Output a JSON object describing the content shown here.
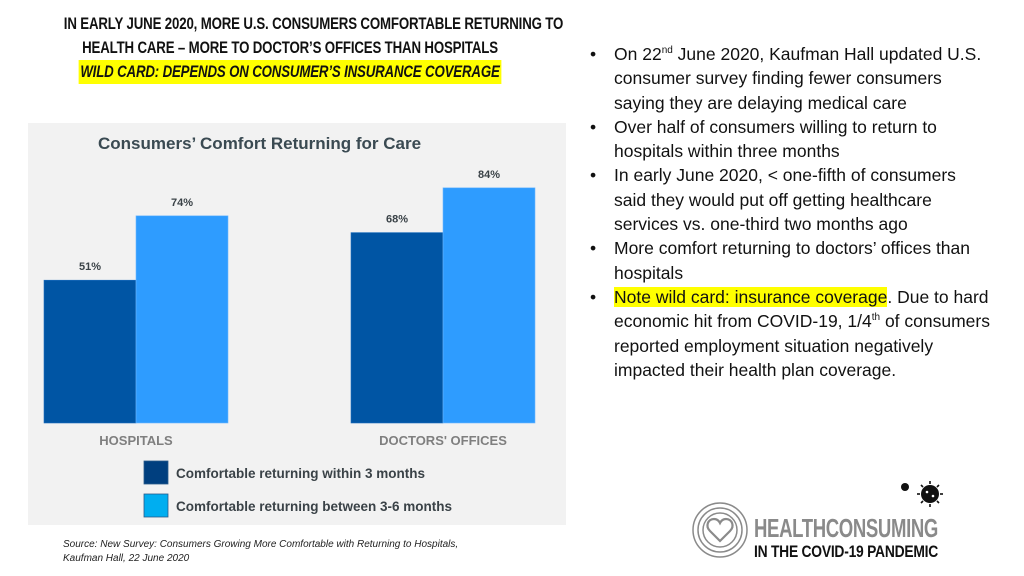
{
  "headline": {
    "line1": "IN EARLY JUNE 2020, MORE U.S. CONSUMERS COMFORTABLE RETURNING TO",
    "line2": "HEALTH CARE – MORE TO DOCTOR’S OFFICES THAN HOSPITALS",
    "line3": "WILD CARD: DEPENDS ON CONSUMER’S INSURANCE COVERAGE"
  },
  "chart_data": {
    "type": "bar",
    "title": "Consumers’ Comfort Returning for Care",
    "categories": [
      "HOSPITALS",
      "DOCTORS' OFFICES"
    ],
    "series": [
      {
        "name": "Comfortable returning within 3 months",
        "values": [
          51,
          68
        ],
        "labels": [
          "51%",
          "68%"
        ],
        "color": "#0055a4"
      },
      {
        "name": "Comfortable returning between 3-6 months",
        "values": [
          74,
          84
        ],
        "labels": [
          "74%",
          "84%"
        ],
        "color": "#2e9cff"
      }
    ],
    "legend_swatch_colors": [
      "#003f7f",
      "#00aef0"
    ],
    "xlabel": "",
    "ylabel": "",
    "ylim": [
      0,
      100
    ],
    "grid": false,
    "legend_position": "bottom"
  },
  "source": {
    "line1": "Source: New Survey: Consumers Growing More Comfortable with Returning to Hospitals,",
    "line2": "Kaufman Hall, 22 June 2020"
  },
  "bullets": [
    {
      "parts": [
        {
          "text": "On 22"
        },
        {
          "sup": "nd"
        },
        {
          "text": " June 2020, Kaufman Hall updated U.S. consumer survey finding fewer consumers saying they are delaying medical care"
        }
      ]
    },
    {
      "parts": [
        {
          "text": "Over half of consumers willing to return to hospitals within three months"
        }
      ]
    },
    {
      "parts": [
        {
          "text": "In early June 2020, < one-fifth of consumers said they would put off getting healthcare services vs. one-third two months ago"
        }
      ]
    },
    {
      "parts": [
        {
          "text": "More comfort returning to doctors’ offices than hospitals"
        }
      ]
    },
    {
      "parts": [
        {
          "highlight": "Note wild card: insurance coverage"
        },
        {
          "text": ". Due to hard economic hit from COVID-19, 1/4"
        },
        {
          "sup": "th"
        },
        {
          "text": " of consumers reported employment situation negatively impacted their health plan coverage."
        }
      ]
    }
  ],
  "logo": {
    "line1": "HEALTHCONSUMING",
    "line2": "IN THE COVID-19 PANDEMIC",
    "icons": [
      "heart-rings-icon",
      "virus-icon"
    ]
  },
  "colors": {
    "highlight": "#ffff00",
    "panel_bg": "#f2f2f2"
  }
}
